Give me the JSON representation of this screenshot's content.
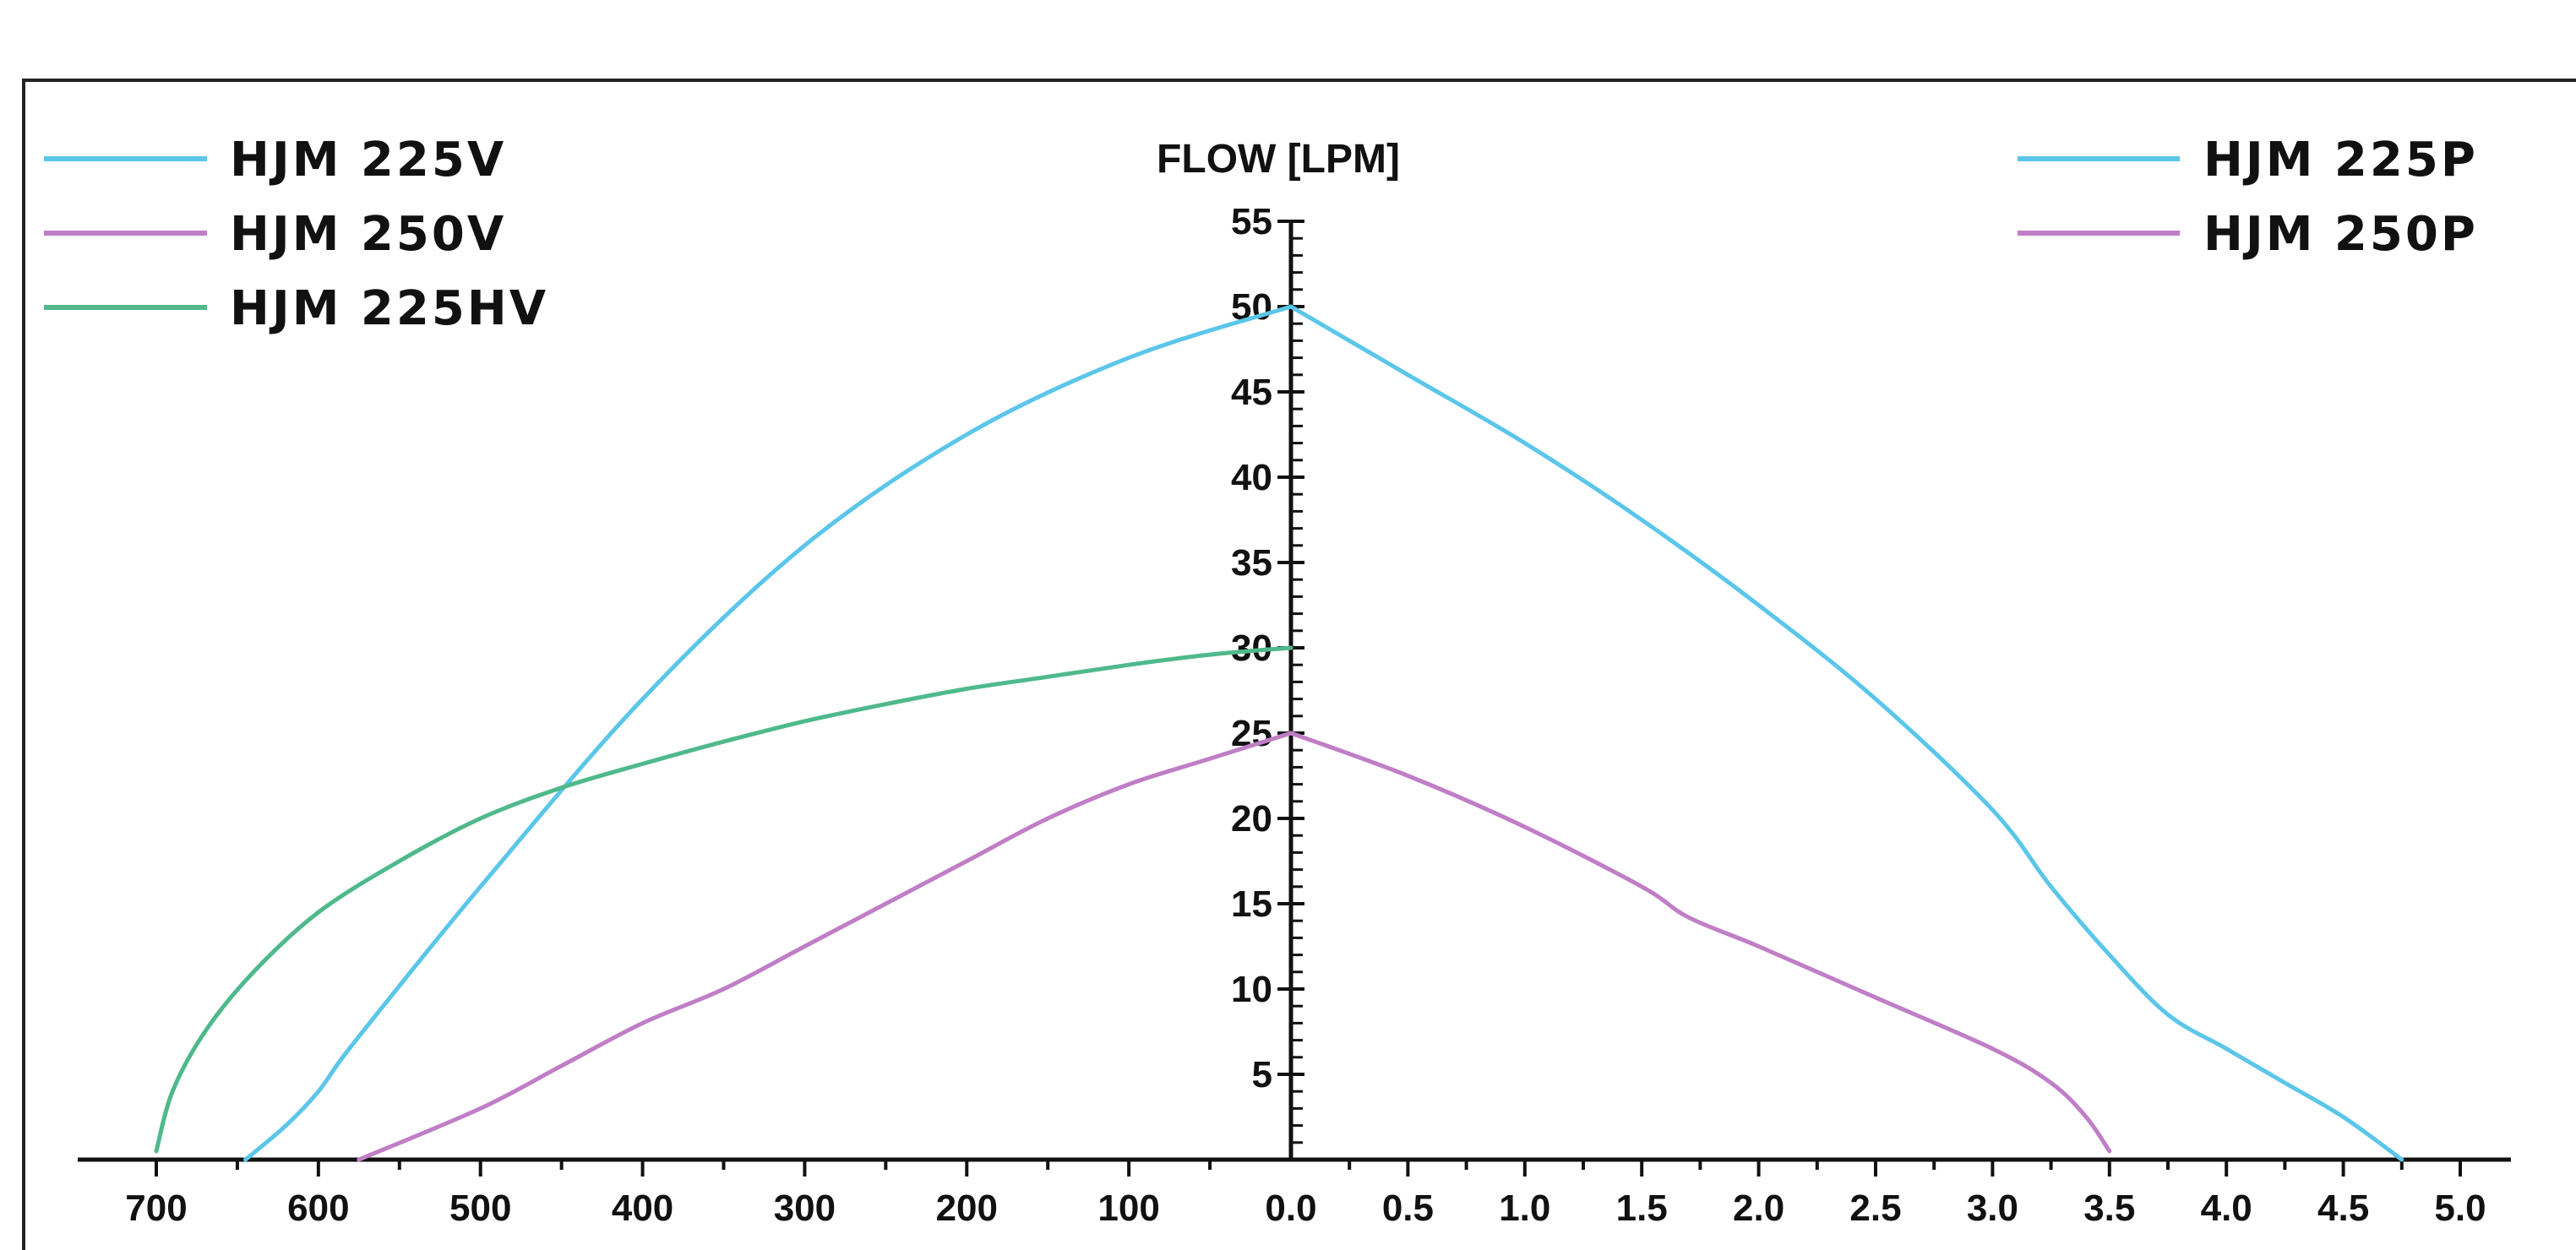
{
  "chart_data": {
    "type": "line",
    "y_axis": {
      "label": "FLOW [LPM]",
      "range": [
        0,
        55
      ],
      "ticks": [
        5,
        10,
        15,
        20,
        25,
        30,
        35,
        40,
        45,
        50,
        55
      ],
      "minor_step": 1
    },
    "left_x_axis": {
      "direction": "decreasing",
      "range": [
        0,
        700
      ],
      "ticks": [
        "700",
        "600",
        "500",
        "400",
        "300",
        "200",
        "100"
      ],
      "tick_values": [
        700,
        600,
        500,
        400,
        300,
        200,
        100
      ]
    },
    "right_x_axis": {
      "range": [
        0,
        5.0
      ],
      "ticks": [
        "0.0",
        "0.5",
        "1.0",
        "1.5",
        "2.0",
        "2.5",
        "3.0",
        "3.5",
        "4.0",
        "4.5",
        "5.0"
      ],
      "tick_values": [
        0,
        0.5,
        1.0,
        1.5,
        2.0,
        2.5,
        3.0,
        3.5,
        4.0,
        4.5,
        5.0
      ]
    },
    "left_series": [
      {
        "name": "HJM 225V",
        "color": "#5bc6ea",
        "points": [
          [
            645,
            0
          ],
          [
            620,
            2
          ],
          [
            600,
            4
          ],
          [
            585,
            6
          ],
          [
            560,
            9
          ],
          [
            500,
            16
          ],
          [
            400,
            27
          ],
          [
            300,
            36
          ],
          [
            200,
            42.5
          ],
          [
            100,
            47
          ],
          [
            0,
            50
          ]
        ]
      },
      {
        "name": "HJM 250V",
        "color": "#c07ec6",
        "points": [
          [
            575,
            0
          ],
          [
            500,
            3
          ],
          [
            450,
            5.5
          ],
          [
            400,
            8
          ],
          [
            350,
            10
          ],
          [
            300,
            12.5
          ],
          [
            250,
            15
          ],
          [
            200,
            17.5
          ],
          [
            150,
            20
          ],
          [
            100,
            22
          ],
          [
            50,
            23.5
          ],
          [
            0,
            25
          ]
        ]
      },
      {
        "name": "HJM 225HV",
        "color": "#4fb98c",
        "points": [
          [
            700,
            0.5
          ],
          [
            690,
            4
          ],
          [
            670,
            7.5
          ],
          [
            640,
            11
          ],
          [
            600,
            14.5
          ],
          [
            550,
            17.5
          ],
          [
            500,
            20
          ],
          [
            450,
            21.8
          ],
          [
            400,
            23.2
          ],
          [
            350,
            24.5
          ],
          [
            300,
            25.7
          ],
          [
            250,
            26.7
          ],
          [
            200,
            27.6
          ],
          [
            150,
            28.3
          ],
          [
            100,
            29
          ],
          [
            50,
            29.6
          ],
          [
            0,
            30
          ]
        ]
      }
    ],
    "right_series": [
      {
        "name": "HJM 225P",
        "color": "#5bc6ea",
        "points": [
          [
            0,
            50
          ],
          [
            0.5,
            46
          ],
          [
            1.0,
            42
          ],
          [
            1.5,
            37.5
          ],
          [
            2.0,
            32.5
          ],
          [
            2.5,
            27
          ],
          [
            3.0,
            20.5
          ],
          [
            3.25,
            16
          ],
          [
            3.5,
            12
          ],
          [
            3.75,
            8.5
          ],
          [
            4.0,
            6.5
          ],
          [
            4.25,
            4.5
          ],
          [
            4.5,
            2.5
          ],
          [
            4.75,
            0
          ]
        ]
      },
      {
        "name": "HJM 250P",
        "color": "#c07ec6",
        "points": [
          [
            0,
            25
          ],
          [
            0.5,
            22.5
          ],
          [
            1.0,
            19.5
          ],
          [
            1.5,
            16
          ],
          [
            1.7,
            14.2
          ],
          [
            2.0,
            12.5
          ],
          [
            2.5,
            9.5
          ],
          [
            3.0,
            6.5
          ],
          [
            3.25,
            4.5
          ],
          [
            3.4,
            2.5
          ],
          [
            3.5,
            0.5
          ]
        ]
      }
    ],
    "legend_left": [
      "HJM 225V",
      "HJM 250V",
      "HJM 225HV"
    ],
    "legend_right": [
      "HJM 225P",
      "HJM 250P"
    ],
    "legend_left_position": "top-left",
    "legend_right_position": "top-right",
    "grid": false
  }
}
